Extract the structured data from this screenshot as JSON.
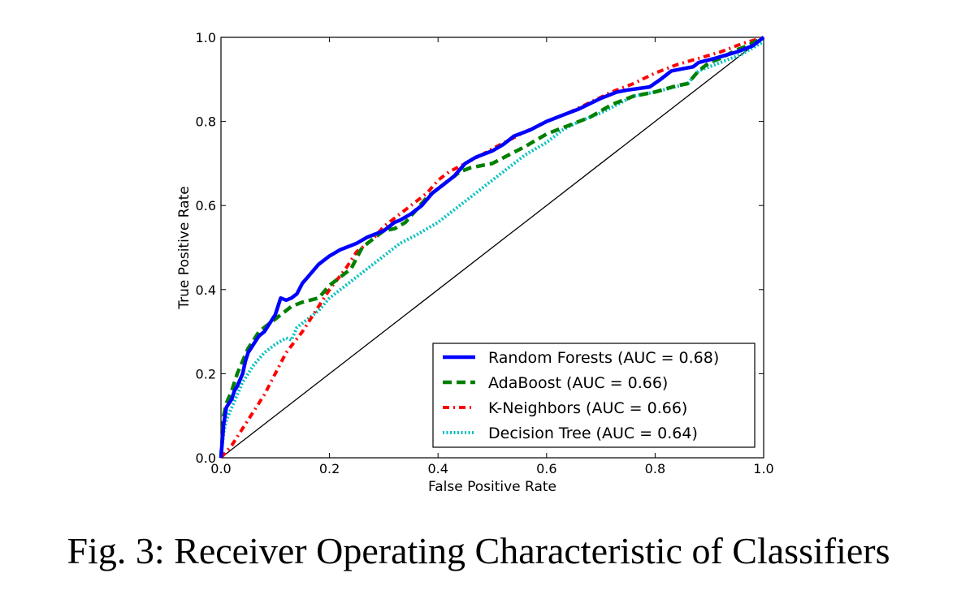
{
  "caption": "Fig. 3: Receiver Operating Characteristic of Classifiers",
  "chart_data": {
    "type": "line",
    "title": "",
    "xlabel": "False Positive Rate",
    "ylabel": "True Positive Rate",
    "xlim": [
      0.0,
      1.0
    ],
    "ylim": [
      0.0,
      1.0
    ],
    "xticks": [
      0.0,
      0.2,
      0.4,
      0.6,
      0.8,
      1.0
    ],
    "yticks": [
      0.0,
      0.2,
      0.4,
      0.6,
      0.8,
      1.0
    ],
    "xtick_labels": [
      "0.0",
      "0.2",
      "0.4",
      "0.6",
      "0.8",
      "1.0"
    ],
    "ytick_labels": [
      "0.0",
      "0.2",
      "0.4",
      "0.6",
      "0.8",
      "1.0"
    ],
    "grid": false,
    "legend_position": "lower-right",
    "diagonal": {
      "x": [
        0,
        1
      ],
      "y": [
        0,
        1
      ],
      "color": "#000000"
    },
    "series": [
      {
        "name": "Random Forests (AUC = 0.68)",
        "color": "#0000ff",
        "style": "solid",
        "x": [
          0.0,
          0.005,
          0.01,
          0.015,
          0.02,
          0.025,
          0.03,
          0.04,
          0.045,
          0.05,
          0.06,
          0.07,
          0.08,
          0.09,
          0.1,
          0.11,
          0.12,
          0.13,
          0.14,
          0.15,
          0.16,
          0.18,
          0.2,
          0.22,
          0.25,
          0.27,
          0.3,
          0.32,
          0.33,
          0.35,
          0.37,
          0.39,
          0.41,
          0.43,
          0.45,
          0.47,
          0.5,
          0.52,
          0.54,
          0.57,
          0.6,
          0.63,
          0.66,
          0.7,
          0.73,
          0.75,
          0.79,
          0.81,
          0.83,
          0.85,
          0.87,
          0.88,
          0.91,
          0.95,
          0.98,
          1.0
        ],
        "y": [
          0.0,
          0.08,
          0.12,
          0.13,
          0.14,
          0.16,
          0.17,
          0.2,
          0.23,
          0.25,
          0.27,
          0.29,
          0.3,
          0.32,
          0.34,
          0.38,
          0.375,
          0.38,
          0.39,
          0.415,
          0.43,
          0.46,
          0.48,
          0.495,
          0.51,
          0.525,
          0.54,
          0.56,
          0.565,
          0.58,
          0.6,
          0.63,
          0.65,
          0.67,
          0.7,
          0.715,
          0.73,
          0.745,
          0.765,
          0.78,
          0.8,
          0.815,
          0.83,
          0.855,
          0.87,
          0.875,
          0.882,
          0.9,
          0.92,
          0.925,
          0.93,
          0.94,
          0.95,
          0.965,
          0.98,
          1.0
        ]
      },
      {
        "name": "AdaBoost (AUC = 0.66)",
        "color": "#008000",
        "style": "dashed",
        "x": [
          0.0,
          0.005,
          0.01,
          0.02,
          0.03,
          0.04,
          0.05,
          0.06,
          0.07,
          0.08,
          0.1,
          0.11,
          0.13,
          0.15,
          0.18,
          0.2,
          0.22,
          0.24,
          0.26,
          0.28,
          0.3,
          0.32,
          0.34,
          0.36,
          0.38,
          0.4,
          0.42,
          0.44,
          0.46,
          0.48,
          0.5,
          0.53,
          0.56,
          0.6,
          0.64,
          0.68,
          0.72,
          0.76,
          0.8,
          0.84,
          0.86,
          0.88,
          0.9,
          0.92,
          0.95,
          0.97,
          1.0
        ],
        "y": [
          0.0,
          0.1,
          0.13,
          0.16,
          0.2,
          0.23,
          0.26,
          0.28,
          0.3,
          0.31,
          0.33,
          0.34,
          0.36,
          0.37,
          0.38,
          0.41,
          0.43,
          0.45,
          0.5,
          0.52,
          0.54,
          0.545,
          0.56,
          0.59,
          0.62,
          0.64,
          0.66,
          0.68,
          0.69,
          0.695,
          0.7,
          0.72,
          0.74,
          0.77,
          0.79,
          0.81,
          0.84,
          0.86,
          0.87,
          0.885,
          0.89,
          0.92,
          0.94,
          0.95,
          0.97,
          0.98,
          1.0
        ]
      },
      {
        "name": "K-Neighbors (AUC = 0.66)",
        "color": "#ff0000",
        "style": "dash-dot",
        "x": [
          0.0,
          0.02,
          0.05,
          0.08,
          0.1,
          0.12,
          0.15,
          0.18,
          0.2,
          0.23,
          0.25,
          0.28,
          0.3,
          0.33,
          0.35,
          0.38,
          0.4,
          0.42,
          0.45,
          0.48,
          0.5,
          0.53,
          0.56,
          0.6,
          0.64,
          0.68,
          0.72,
          0.76,
          0.8,
          0.84,
          0.88,
          0.92,
          0.96,
          1.0
        ],
        "y": [
          0.0,
          0.03,
          0.09,
          0.15,
          0.2,
          0.25,
          0.3,
          0.36,
          0.4,
          0.45,
          0.49,
          0.52,
          0.55,
          0.58,
          0.6,
          0.63,
          0.66,
          0.68,
          0.7,
          0.72,
          0.735,
          0.755,
          0.775,
          0.8,
          0.82,
          0.845,
          0.87,
          0.89,
          0.915,
          0.935,
          0.95,
          0.965,
          0.985,
          1.0
        ]
      },
      {
        "name": "Decision Tree (AUC = 0.64)",
        "color": "#00bfbf",
        "style": "dotted",
        "x": [
          0.0,
          0.005,
          0.01,
          0.02,
          0.03,
          0.04,
          0.05,
          0.06,
          0.08,
          0.1,
          0.12,
          0.13,
          0.14,
          0.16,
          0.18,
          0.2,
          0.22,
          0.25,
          0.28,
          0.3,
          0.33,
          0.36,
          0.4,
          0.43,
          0.46,
          0.5,
          0.53,
          0.56,
          0.6,
          0.63,
          0.66,
          0.7,
          0.73,
          0.76,
          0.8,
          0.83,
          0.86,
          0.88,
          0.92,
          0.96,
          1.0
        ],
        "y": [
          0.0,
          0.06,
          0.09,
          0.12,
          0.15,
          0.18,
          0.2,
          0.22,
          0.25,
          0.27,
          0.285,
          0.28,
          0.31,
          0.33,
          0.35,
          0.38,
          0.4,
          0.43,
          0.46,
          0.48,
          0.51,
          0.53,
          0.56,
          0.59,
          0.62,
          0.66,
          0.69,
          0.72,
          0.75,
          0.78,
          0.8,
          0.82,
          0.84,
          0.86,
          0.87,
          0.88,
          0.89,
          0.92,
          0.94,
          0.96,
          0.99
        ]
      }
    ]
  }
}
